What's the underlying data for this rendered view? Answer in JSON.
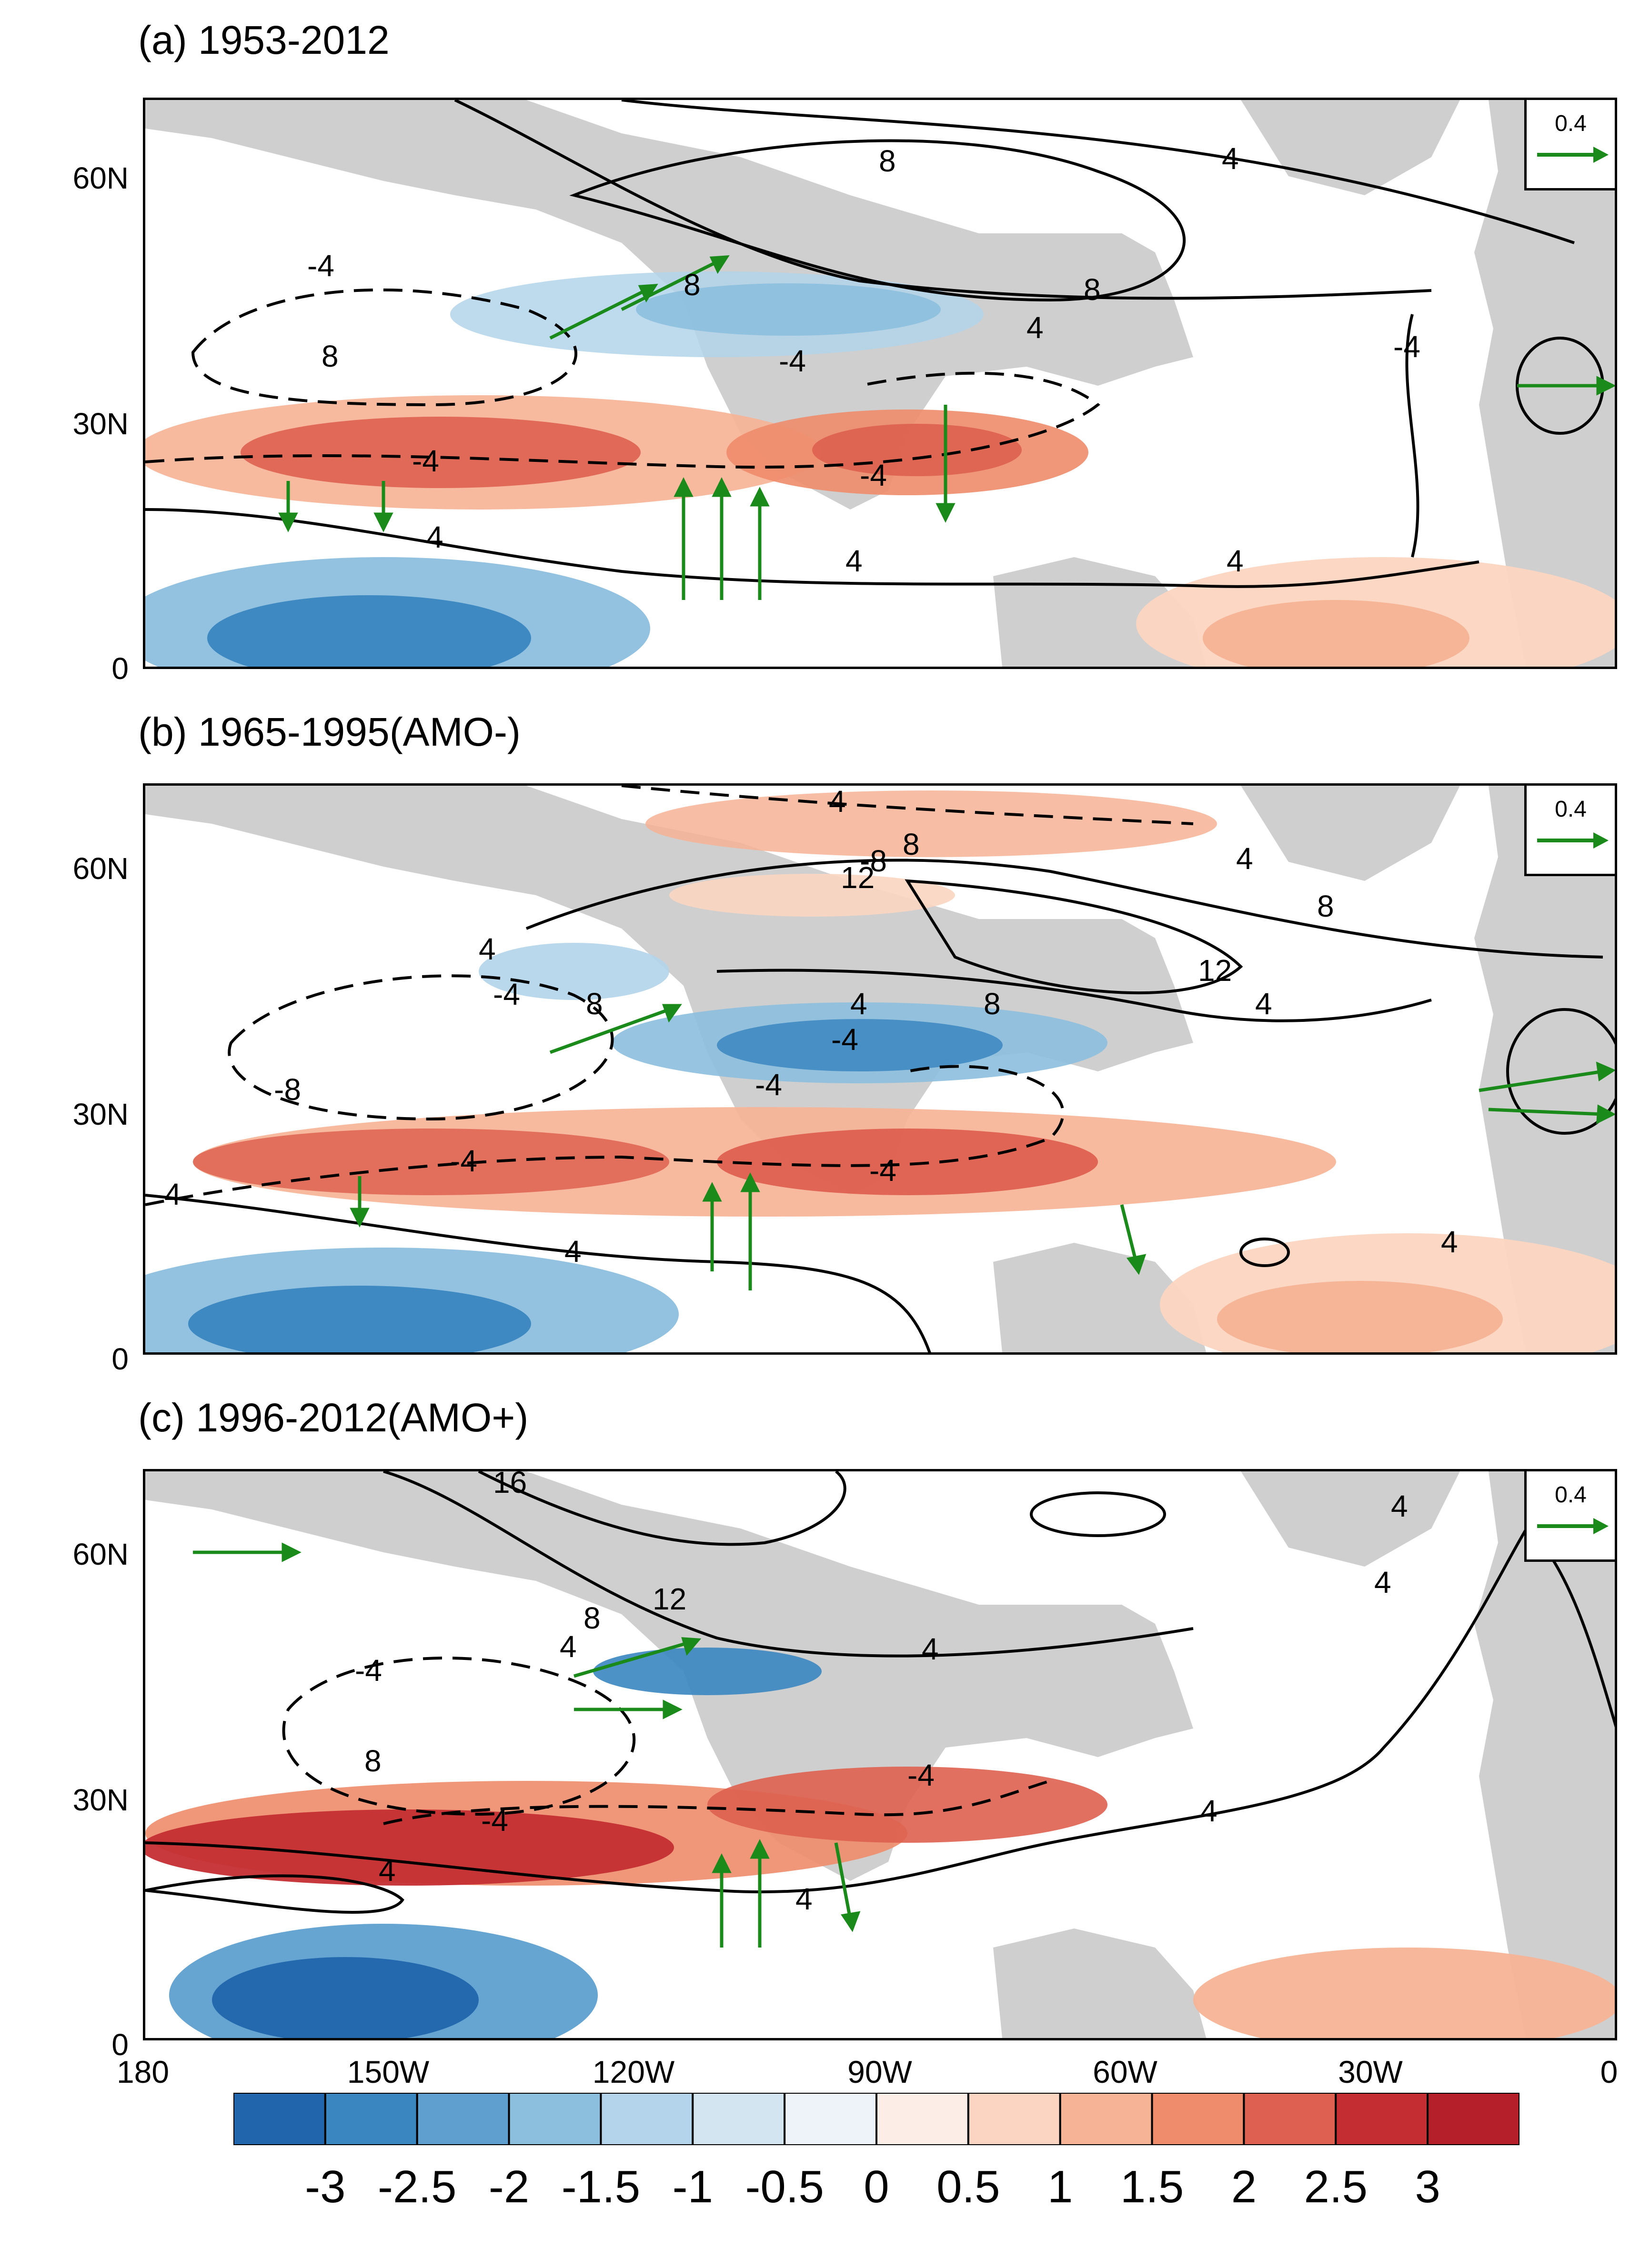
{
  "panels": [
    {
      "id": "a",
      "title": "(a) 1953-2012",
      "reference_vector": "0.4",
      "contour_labels": [
        "8",
        "4",
        "8",
        "8",
        "4",
        "-4",
        "8",
        "-4",
        "-4",
        "-4",
        "4",
        "4",
        "4",
        "-4"
      ]
    },
    {
      "id": "b",
      "title": "(b) 1965-1995(AMO-)",
      "reference_vector": "0.4",
      "contour_labels": [
        "4",
        "8",
        "4",
        "12",
        "8",
        "12",
        "4",
        "4",
        "8",
        "4",
        "-4",
        "-4",
        "8",
        "-4",
        "-8",
        "-8",
        "-4",
        "-4",
        "4",
        "4",
        "4"
      ]
    },
    {
      "id": "c",
      "title": "(c) 1996-2012(AMO+)",
      "reference_vector": "0.4",
      "contour_labels": [
        "16",
        "12",
        "4",
        "8",
        "4",
        "4",
        "4",
        "-4",
        "8",
        "-4",
        "-4",
        "4",
        "4",
        "4"
      ]
    }
  ],
  "axes": {
    "lat_ticks": [
      "60N",
      "30N",
      "0"
    ],
    "lon_ticks": [
      "180",
      "150W",
      "120W",
      "90W",
      "60W",
      "30W",
      "0"
    ]
  },
  "colorbar": {
    "labels": [
      "-3",
      "-2.5",
      "-2",
      "-1.5",
      "-1",
      "-0.5",
      "0",
      "0.5",
      "1",
      "1.5",
      "2",
      "2.5",
      "3"
    ],
    "colors": [
      "#2166ac",
      "#3a86c0",
      "#5e9fcf",
      "#8cbfde",
      "#b3d4ea",
      "#d4e5f2",
      "#eef3f9",
      "#fcede6",
      "#fbd5c1",
      "#f7b395",
      "#ee8c6c",
      "#de6050",
      "#c42e33",
      "#b41f2a"
    ]
  },
  "colors": {
    "land": "#cfcfcf",
    "vector": "#1a8a1a",
    "contour": "#000000"
  }
}
